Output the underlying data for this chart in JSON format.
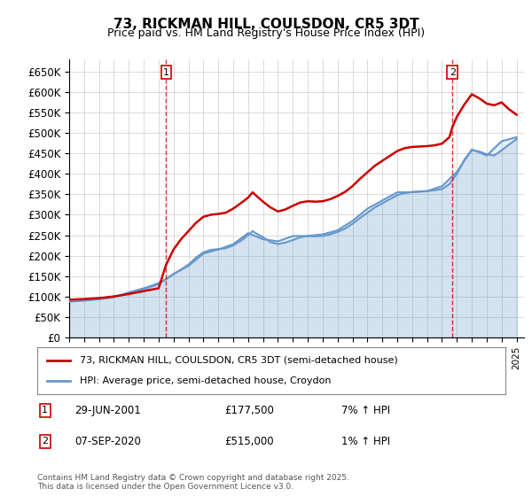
{
  "title": "73, RICKMAN HILL, COULSDON, CR5 3DT",
  "subtitle": "Price paid vs. HM Land Registry's House Price Index (HPI)",
  "ylabel": "",
  "background_color": "#ffffff",
  "grid_color": "#cccccc",
  "ylim": [
    0,
    680000
  ],
  "yticks": [
    0,
    50000,
    100000,
    150000,
    200000,
    250000,
    300000,
    350000,
    400000,
    450000,
    500000,
    550000,
    600000,
    650000
  ],
  "ytick_labels": [
    "£0",
    "£50K",
    "£100K",
    "£150K",
    "£200K",
    "£250K",
    "£300K",
    "£350K",
    "£400K",
    "£450K",
    "£500K",
    "£550K",
    "£600K",
    "£650K"
  ],
  "legend1_label": "73, RICKMAN HILL, COULSDON, CR5 3DT (semi-detached house)",
  "legend2_label": "HPI: Average price, semi-detached house, Croydon",
  "legend1_color": "#cc0000",
  "legend2_color": "#6699cc",
  "marker1_date": "29-JUN-2001",
  "marker1_price": 177500,
  "marker1_label": "1",
  "marker2_date": "07-SEP-2020",
  "marker2_price": 515000,
  "marker2_label": "2",
  "annotation1": "1     29-JUN-2001          £177,500          7% ↑ HPI",
  "annotation2": "2     07-SEP-2020          £515,000          1% ↑ HPI",
  "footer": "Contains HM Land Registry data © Crown copyright and database right 2025.\nThis data is licensed under the Open Government Licence v3.0.",
  "hpi_years": [
    1995,
    1996,
    1997,
    1998,
    1999,
    2000,
    2001,
    2002,
    2003,
    2004,
    2005,
    2006,
    2007,
    2008,
    2009,
    2010,
    2011,
    2012,
    2013,
    2014,
    2015,
    2016,
    2017,
    2018,
    2019,
    2020,
    2021,
    2022,
    2023,
    2024,
    2025
  ],
  "hpi_values": [
    88000,
    90000,
    93000,
    98000,
    108000,
    118000,
    130000,
    155000,
    175000,
    205000,
    215000,
    228000,
    255000,
    240000,
    235000,
    248000,
    248000,
    252000,
    262000,
    285000,
    315000,
    335000,
    355000,
    355000,
    358000,
    370000,
    405000,
    460000,
    445000,
    480000,
    490000
  ],
  "price_years": [
    1995.5,
    2001.5,
    2020.7,
    2023.5,
    2024.0,
    2024.5
  ],
  "price_values": [
    92000,
    177500,
    515000,
    555000,
    535000,
    530000
  ],
  "xmin": 1995,
  "xmax": 2025.5
}
